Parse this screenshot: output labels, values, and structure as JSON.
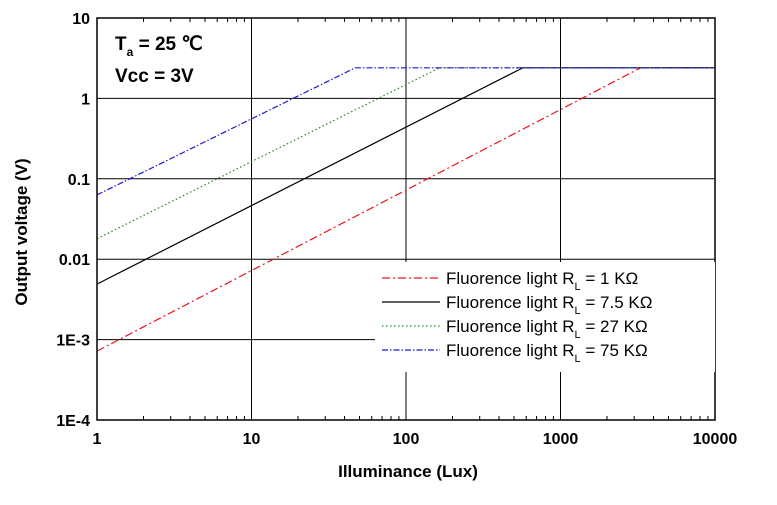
{
  "chart_data": {
    "type": "line",
    "xlabel": "Illuminance (Lux)",
    "ylabel": "Output voltage (V)",
    "x_scale": "log",
    "y_scale": "log",
    "xlim": [
      1,
      10000
    ],
    "ylim": [
      0.0001,
      10
    ],
    "x_ticks": [
      "1",
      "10",
      "100",
      "1000",
      "10000"
    ],
    "y_ticks": [
      "1E-4",
      "1E-3",
      "0.01",
      "0.1",
      "1",
      "10"
    ],
    "grid": true,
    "legend_position": "bottom-right",
    "annotations": {
      "ta_main": "T",
      "ta_sub": "a",
      "ta_value": " = 25 ℃",
      "vcc": "Vcc = 3V"
    },
    "series": [
      {
        "legend_prefix": "Fluorence light R",
        "legend_sub": "L",
        "legend_suffix": " = 1 KΩ",
        "color": "#e8141b",
        "dash": "8,3,2,3",
        "x": [
          1,
          3300,
          10000
        ],
        "y": [
          0.00072,
          2.4,
          2.4
        ]
      },
      {
        "legend_prefix": "Fluorence light R",
        "legend_sub": "L",
        "legend_suffix": " = 7.5 KΩ",
        "color": "#000000",
        "dash": "",
        "x": [
          1,
          570,
          10000
        ],
        "y": [
          0.0049,
          2.4,
          2.4
        ]
      },
      {
        "legend_prefix": "Fluorence light R",
        "legend_sub": "L",
        "legend_suffix": " = 27 KΩ",
        "color": "#1f8a1f",
        "dash": "1.5,2.5",
        "x": [
          1,
          165,
          10000
        ],
        "y": [
          0.018,
          2.4,
          2.4
        ]
      },
      {
        "legend_prefix": "Fluorence light R",
        "legend_sub": "L",
        "legend_suffix": " = 75 KΩ",
        "color": "#1a1ad0",
        "dash": "6,2,1.5,2",
        "x": [
          1,
          47,
          10000
        ],
        "y": [
          0.063,
          2.4,
          2.4
        ]
      }
    ]
  }
}
